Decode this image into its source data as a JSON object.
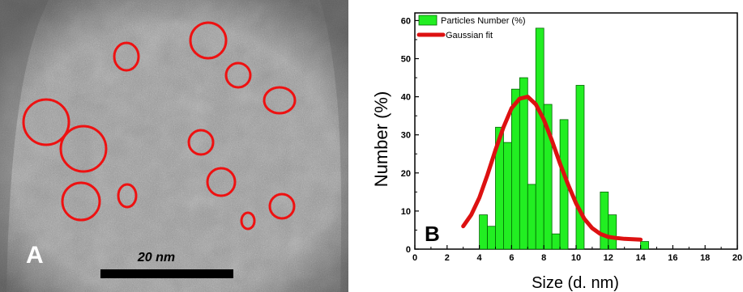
{
  "panel_a": {
    "label": "A",
    "scale_bar_text": "20 nm"
  },
  "panel_b": {
    "label": "B"
  },
  "colors": {
    "bars": "#22ee22",
    "bar_edge": "#006600",
    "fit": "#dd1111",
    "circles": "#ee1111"
  },
  "chart_data": {
    "type": "bar",
    "title": "",
    "xlabel": "Size (d. nm)",
    "ylabel": "Number (%)",
    "xlim": [
      0,
      20
    ],
    "ylim": [
      0,
      62
    ],
    "xticks": [
      "0",
      "2",
      "4",
      "6",
      "8",
      "10",
      "12",
      "14",
      "16",
      "18",
      "20"
    ],
    "yticks": [
      "0",
      "10",
      "20",
      "30",
      "40",
      "50",
      "60"
    ],
    "legend": {
      "position": "top-left",
      "entries": [
        "Particles Number (%)",
        "Gaussian fit"
      ]
    },
    "series": [
      {
        "name": "Particles Number (%)",
        "type": "bar",
        "bin_width": 0.5,
        "x": [
          4.0,
          4.5,
          5.0,
          5.5,
          6.0,
          6.5,
          7.0,
          7.5,
          8.0,
          8.5,
          9.0,
          10.0,
          11.5,
          12.0,
          14.0
        ],
        "values": [
          9,
          6,
          32,
          28,
          42,
          45,
          17,
          58,
          38,
          4,
          34,
          43,
          15,
          9,
          2
        ]
      },
      {
        "name": "Gaussian fit",
        "type": "line",
        "x": [
          3.0,
          3.5,
          4.0,
          4.5,
          5.0,
          5.5,
          6.0,
          6.5,
          7.0,
          7.5,
          8.0,
          8.5,
          9.0,
          9.5,
          10.0,
          10.5,
          11.0,
          11.5,
          12.0,
          12.5,
          13.0,
          13.5,
          14.0
        ],
        "values": [
          6,
          9,
          13.5,
          19.5,
          26,
          32,
          37,
          39.5,
          40,
          38,
          34,
          28.5,
          22.5,
          17,
          12,
          8,
          5.5,
          4,
          3.2,
          2.9,
          2.7,
          2.6,
          2.5
        ]
      }
    ]
  }
}
